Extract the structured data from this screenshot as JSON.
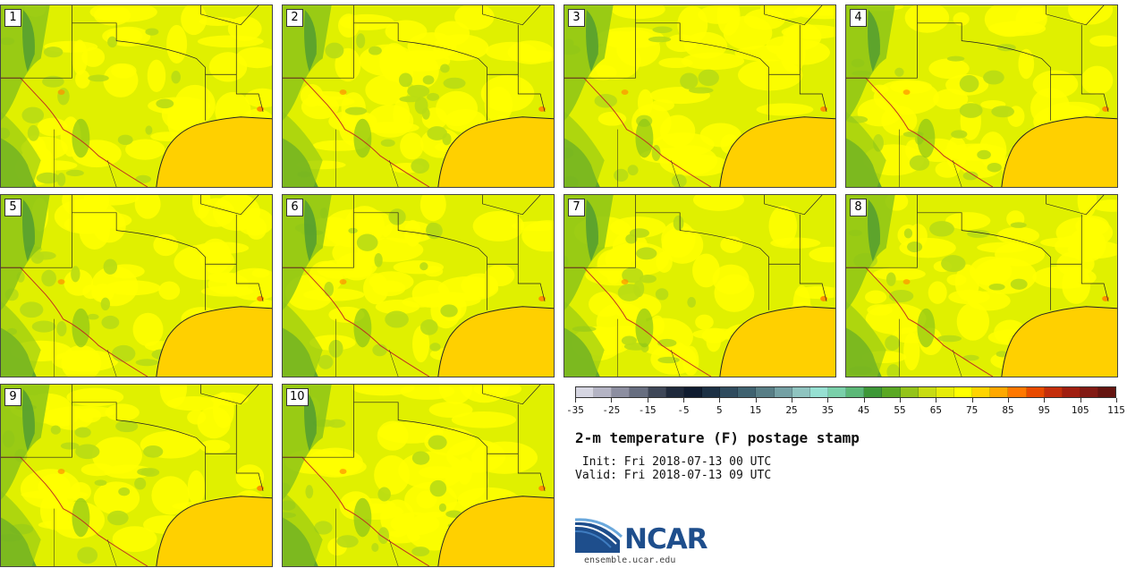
{
  "title": "2-m temperature (F) postage stamp",
  "init_line": " Init: Fri 2018-07-13 00 UTC",
  "valid_line": "Valid: Fri 2018-07-13 09 UTC",
  "logo_text": "NCAR",
  "url": "ensemble.ucar.edu",
  "members": [
    "1",
    "2",
    "3",
    "4",
    "5",
    "6",
    "7",
    "8",
    "9",
    "10"
  ],
  "colorbar": {
    "tick_labels": [
      "-35",
      "-25",
      "-15",
      "-5",
      "5",
      "15",
      "25",
      "35",
      "45",
      "55",
      "65",
      "75",
      "85",
      "95",
      "105",
      "115"
    ],
    "colors": [
      "#d6d6e2",
      "#b4b4c4",
      "#8c8ea0",
      "#676e80",
      "#3e4758",
      "#1f2a3c",
      "#0f1c30",
      "#1c3044",
      "#2f4b5e",
      "#3f6270",
      "#587e86",
      "#74a0a4",
      "#8fc4c0",
      "#96e0d2",
      "#7ad0aa",
      "#5cb878",
      "#3e9838",
      "#5aa824",
      "#94c41a",
      "#c8dc12",
      "#e6ec08",
      "#ffff00",
      "#ffd400",
      "#ffa800",
      "#ff7800",
      "#e84a00",
      "#c42e0c",
      "#a01e10",
      "#821a14",
      "#641410"
    ]
  },
  "map_colors": {
    "land_base": "#e0f000",
    "warm": "#ffff00",
    "cool": "#b8dc14",
    "cooler": "#8cc418",
    "mountain": "#4e9a32",
    "gulf": "#ffd000",
    "hot_spot": "#ff9000"
  }
}
